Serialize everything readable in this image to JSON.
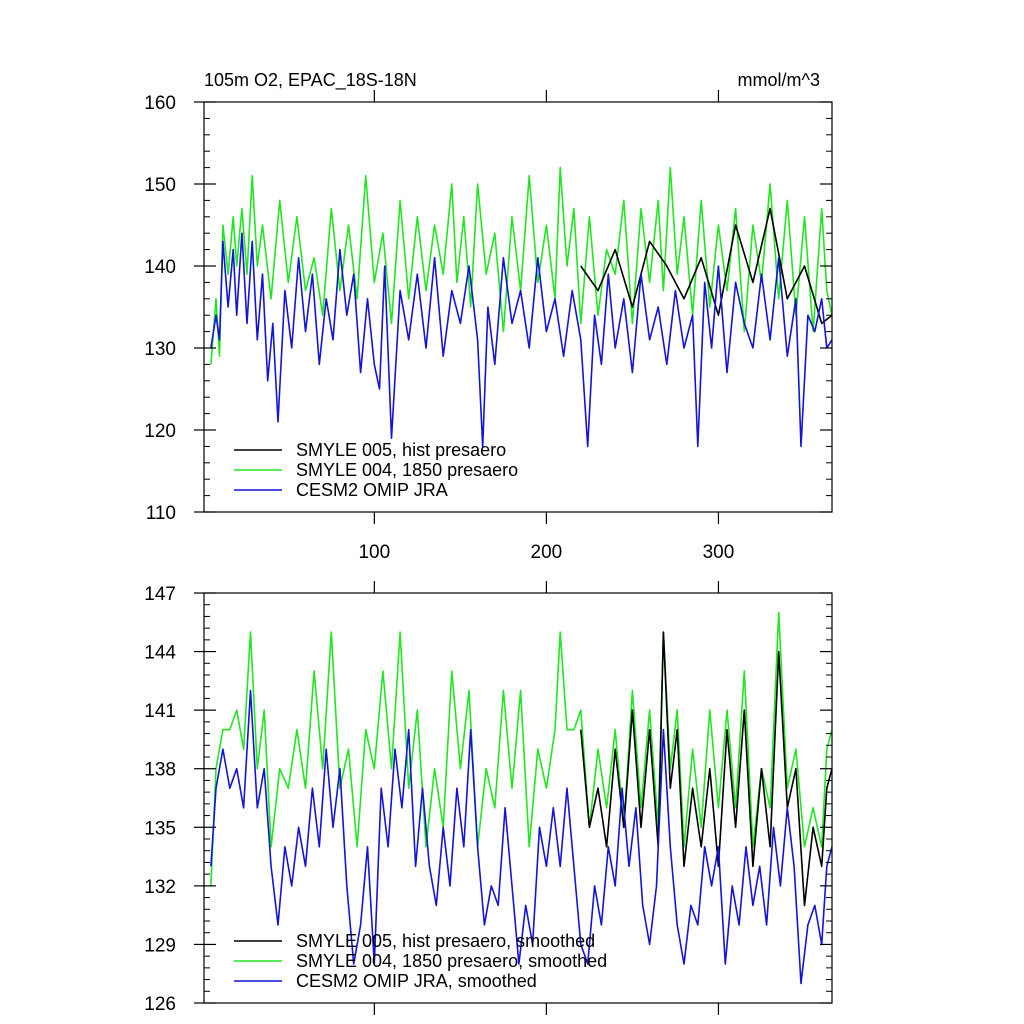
{
  "colors": {
    "black": "#000000",
    "green": "#22e622",
    "blue": "#1414d8",
    "axis": "#000000"
  },
  "chart_data": [
    {
      "type": "line",
      "title": "105m O2, EPAC_18S-18N",
      "units": "mmol/m^3",
      "xlim": [
        1,
        366
      ],
      "ylim": [
        110,
        160
      ],
      "yticks": [
        110,
        120,
        130,
        140,
        150,
        160
      ],
      "ytick_labels": [
        "110",
        "120",
        "130",
        "140",
        "150",
        "160"
      ],
      "xticks": [
        100,
        200,
        300
      ],
      "xtick_labels": [
        "100",
        "200",
        "300"
      ],
      "legend": [
        "SMYLE 005, hist presaero",
        "SMYLE 004, 1850 presaero",
        "CESM2 OMIP JRA"
      ],
      "series": [
        {
          "name": "SMYLE 005, hist presaero",
          "color": "black",
          "x": [
            220,
            230,
            240,
            250,
            260,
            270,
            280,
            290,
            300,
            310,
            320,
            330,
            340,
            350,
            360,
            366
          ],
          "y": [
            140,
            137,
            142,
            135,
            143,
            140,
            136,
            141,
            134,
            145,
            138,
            147,
            136,
            140,
            133,
            134
          ]
        },
        {
          "name": "SMYLE 004, 1850 presaero",
          "color": "green",
          "x": [
            5,
            8,
            10,
            12,
            15,
            18,
            20,
            23,
            26,
            29,
            32,
            35,
            40,
            45,
            50,
            55,
            60,
            65,
            70,
            75,
            80,
            85,
            90,
            95,
            100,
            105,
            110,
            115,
            120,
            125,
            130,
            135,
            140,
            145,
            148,
            152,
            156,
            160,
            165,
            170,
            175,
            180,
            185,
            190,
            195,
            200,
            205,
            208,
            212,
            216,
            220,
            225,
            230,
            235,
            240,
            245,
            250,
            255,
            260,
            265,
            268,
            272,
            276,
            280,
            285,
            290,
            295,
            300,
            305,
            310,
            315,
            320,
            325,
            330,
            335,
            340,
            345,
            350,
            355,
            360,
            363,
            366
          ],
          "y": [
            128,
            136,
            129,
            145,
            139,
            146,
            140,
            147,
            139,
            151,
            140,
            145,
            136,
            148,
            138,
            146,
            137,
            141,
            134,
            147,
            137,
            145,
            136,
            151,
            138,
            144,
            133,
            148,
            136,
            146,
            137,
            145,
            139,
            150,
            138,
            146,
            135,
            150,
            139,
            144,
            132,
            146,
            137,
            151,
            138,
            145,
            136,
            152,
            140,
            147,
            133,
            146,
            134,
            142,
            139,
            148,
            133,
            147,
            138,
            148,
            137,
            152,
            139,
            146,
            134,
            148,
            135,
            145,
            137,
            147,
            132,
            145,
            138,
            150,
            136,
            148,
            134,
            146,
            132,
            147,
            137,
            134
          ]
        },
        {
          "name": "CESM2 OMIP JRA",
          "color": "blue",
          "x": [
            5,
            8,
            10,
            12,
            15,
            18,
            20,
            23,
            26,
            29,
            32,
            35,
            38,
            41,
            44,
            48,
            52,
            56,
            60,
            64,
            68,
            72,
            76,
            80,
            84,
            88,
            92,
            96,
            100,
            103,
            106,
            110,
            115,
            120,
            125,
            130,
            135,
            140,
            145,
            150,
            155,
            160,
            163,
            166,
            170,
            175,
            180,
            185,
            190,
            195,
            200,
            205,
            210,
            215,
            220,
            224,
            228,
            232,
            236,
            240,
            245,
            250,
            255,
            260,
            265,
            270,
            275,
            280,
            285,
            288,
            292,
            296,
            300,
            305,
            310,
            315,
            320,
            325,
            330,
            335,
            340,
            345,
            348,
            352,
            356,
            360,
            363,
            366
          ],
          "y": [
            130,
            134,
            131,
            143,
            135,
            142,
            134,
            144,
            133,
            143,
            131,
            139,
            126,
            133,
            121,
            137,
            130,
            141,
            132,
            139,
            128,
            136,
            131,
            142,
            134,
            139,
            127,
            136,
            128,
            125,
            140,
            119,
            137,
            131,
            139,
            130,
            141,
            129,
            137,
            133,
            140,
            131,
            118,
            135,
            128,
            141,
            133,
            137,
            130,
            141,
            132,
            136,
            129,
            137,
            131,
            118,
            134,
            128,
            139,
            130,
            136,
            127,
            139,
            131,
            135,
            128,
            137,
            130,
            134,
            118,
            138,
            130,
            140,
            127,
            138,
            133,
            130,
            139,
            131,
            141,
            129,
            136,
            118,
            134,
            132,
            136,
            130,
            131
          ]
        }
      ]
    },
    {
      "type": "line",
      "title": "",
      "units": "",
      "xlim": [
        1,
        366
      ],
      "ylim": [
        126,
        147
      ],
      "yticks": [
        126,
        129,
        132,
        135,
        138,
        141,
        144,
        147
      ],
      "ytick_labels": [
        "126",
        "129",
        "132",
        "135",
        "138",
        "141",
        "144",
        "147"
      ],
      "xticks": [
        100,
        200,
        300
      ],
      "xtick_labels": [],
      "legend": [
        "SMYLE 005, hist presaero, smoothed",
        "SMYLE 004, 1850 presaero, smoothed",
        "CESM2 OMIP JRA, smoothed"
      ],
      "series": [
        {
          "name": "SMYLE 005, hist presaero, smoothed",
          "color": "black",
          "x": [
            220,
            225,
            230,
            235,
            240,
            245,
            250,
            255,
            260,
            265,
            268,
            272,
            276,
            280,
            285,
            290,
            295,
            300,
            305,
            310,
            315,
            320,
            325,
            330,
            335,
            340,
            345,
            350,
            355,
            360,
            363,
            366
          ],
          "y": [
            140,
            135,
            137,
            134,
            139,
            135,
            141,
            135,
            140,
            134,
            145,
            137,
            140,
            133,
            137,
            134,
            138,
            133,
            140,
            135,
            141,
            133,
            138,
            134,
            144,
            136,
            138,
            131,
            135,
            133,
            137,
            138
          ]
        },
        {
          "name": "SMYLE 004, 1850 presaero, smoothed",
          "color": "green",
          "x": [
            5,
            8,
            12,
            16,
            20,
            24,
            28,
            32,
            36,
            40,
            45,
            50,
            55,
            60,
            65,
            70,
            75,
            80,
            85,
            90,
            95,
            100,
            105,
            110,
            115,
            120,
            125,
            130,
            135,
            140,
            145,
            150,
            155,
            160,
            165,
            170,
            175,
            180,
            185,
            190,
            195,
            200,
            205,
            208,
            212,
            216,
            220,
            225,
            230,
            235,
            240,
            245,
            250,
            255,
            260,
            265,
            268,
            272,
            276,
            280,
            285,
            290,
            295,
            300,
            305,
            310,
            315,
            320,
            325,
            330,
            335,
            340,
            345,
            350,
            355,
            360,
            363,
            366
          ],
          "y": [
            132,
            138,
            140,
            140,
            141,
            139,
            145,
            138,
            141,
            134,
            138,
            137,
            140,
            137,
            143,
            138,
            145,
            137,
            139,
            134,
            140,
            138,
            143,
            138,
            145,
            137,
            141,
            134,
            138,
            135,
            143,
            138,
            142,
            134,
            138,
            136,
            142,
            137,
            142,
            134,
            139,
            137,
            140,
            145,
            140,
            140,
            141,
            135,
            139,
            136,
            140,
            135,
            142,
            136,
            141,
            135,
            145,
            138,
            141,
            134,
            139,
            135,
            141,
            136,
            141,
            136,
            143,
            134,
            138,
            136,
            146,
            137,
            139,
            134,
            136,
            134,
            139,
            140
          ]
        },
        {
          "name": "CESM2 OMIP JRA, smoothed",
          "color": "blue",
          "x": [
            5,
            8,
            12,
            16,
            20,
            24,
            28,
            32,
            36,
            40,
            44,
            48,
            52,
            56,
            60,
            64,
            68,
            72,
            76,
            80,
            84,
            88,
            92,
            96,
            100,
            104,
            108,
            112,
            116,
            120,
            124,
            128,
            132,
            136,
            140,
            144,
            148,
            152,
            156,
            160,
            164,
            168,
            172,
            176,
            180,
            184,
            188,
            192,
            196,
            200,
            204,
            208,
            212,
            216,
            220,
            224,
            228,
            232,
            236,
            240,
            244,
            248,
            252,
            256,
            260,
            264,
            268,
            272,
            276,
            280,
            284,
            288,
            292,
            296,
            300,
            304,
            308,
            312,
            316,
            320,
            324,
            328,
            332,
            336,
            340,
            344,
            348,
            352,
            356,
            360,
            363,
            366
          ],
          "y": [
            133,
            137,
            139,
            137,
            138,
            136,
            142,
            136,
            138,
            133,
            130,
            134,
            132,
            135,
            133,
            137,
            134,
            139,
            135,
            138,
            132,
            128,
            130,
            134,
            128,
            137,
            134,
            139,
            136,
            140,
            133,
            137,
            133,
            131,
            135,
            132,
            137,
            134,
            140,
            134,
            130,
            132,
            131,
            136,
            132,
            128,
            131,
            129,
            135,
            133,
            136,
            133,
            137,
            133,
            129,
            128,
            132,
            130,
            134,
            132,
            137,
            133,
            136,
            131,
            129,
            132,
            140,
            134,
            130,
            128,
            131,
            130,
            134,
            132,
            134,
            128,
            132,
            130,
            134,
            131,
            133,
            130,
            135,
            132,
            136,
            133,
            127,
            130,
            131,
            129,
            133,
            134
          ]
        }
      ]
    }
  ]
}
